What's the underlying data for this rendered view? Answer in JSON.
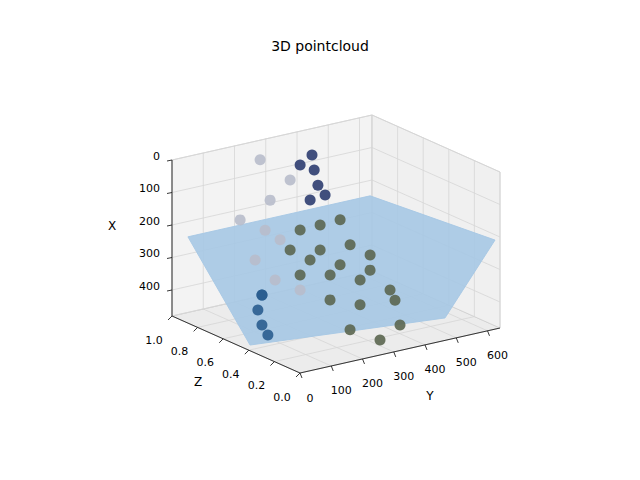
{
  "chart_data": {
    "type": "scatter3d",
    "title": "3D pointcloud",
    "xlabel": "X",
    "ylabel": "Y",
    "zlabel": "Z",
    "xlim": [
      0,
      480
    ],
    "xticks": [
      0,
      100,
      200,
      300,
      400
    ],
    "ylim": [
      0,
      640
    ],
    "yticks": [
      0,
      100,
      200,
      300,
      400,
      500,
      600
    ],
    "zlim": [
      0,
      1
    ],
    "zticks": [
      {
        "value": 0,
        "label": "0.0"
      },
      {
        "value": 0.2,
        "label": "0.2"
      },
      {
        "value": 0.4,
        "label": "0.4"
      },
      {
        "value": 0.6,
        "label": "0.6"
      },
      {
        "value": 0.8,
        "label": "0.8"
      },
      {
        "value": 1,
        "label": "1.0"
      }
    ],
    "grid": true,
    "series": [
      {
        "type": "surface",
        "color": "#a6c8e4",
        "x": [
          221,
          221,
          206,
          411,
          465
        ],
        "y": [
          10,
          593,
          624,
          464,
          4
        ],
        "z": [
          0.9,
          0.9,
          0.0,
          0.0,
          0.4
        ]
      },
      {
        "type": "scatter",
        "color": "#b8bccb",
        "x": [
          34,
          165,
          294,
          339,
          254,
          117,
          205,
          462,
          414
        ],
        "y": [
          241,
          273,
          305,
          225,
          257,
          337,
          177,
          369,
          289
        ],
        "z": [
          0.9,
          0.9,
          0.9,
          0.9,
          0.9,
          0.9,
          0.9,
          0.9,
          0.9
        ]
      },
      {
        "type": "scatter",
        "color": "#5b6650",
        "x": [
          278,
          276,
          274,
          332,
          353,
          358,
          403,
          416,
          437,
          473,
          355,
          391,
          366,
          461,
          460,
          428,
          348,
          271,
          307,
          344
        ],
        "y": [
          369,
          433,
          497,
          337,
          433,
          529,
          593,
          369,
          465,
          561,
          219,
          315,
          411,
          283,
          297,
          361,
          345,
          237,
          333,
          429
        ],
        "z": [
          0.9,
          0.9,
          0.9,
          0.9,
          0.9,
          0.9,
          0.9,
          0.9,
          0.9,
          0.9,
          0.3,
          0.3,
          0.3,
          0.3,
          0.1,
          0.1,
          0.1,
          0.5,
          0.5,
          0.5
        ]
      },
      {
        "type": "scatter",
        "color": "#2e3d70",
        "x": [
          55,
          103,
          152,
          192,
          78,
          187
        ],
        "y": [
          407,
          414,
          426,
          401,
          369,
          449
        ],
        "z": [
          0.9,
          0.9,
          0.9,
          0.9,
          0.9,
          0.9
        ]
      },
      {
        "type": "scatter",
        "color": "#2a5d8f",
        "x": [
          451,
          389,
          438,
          473,
          346
        ],
        "y": [
          247,
          70,
          83,
          102,
          83
        ],
        "z": [
          0.9,
          0.5,
          0.5,
          0.5,
          0.5
        ]
      }
    ]
  }
}
